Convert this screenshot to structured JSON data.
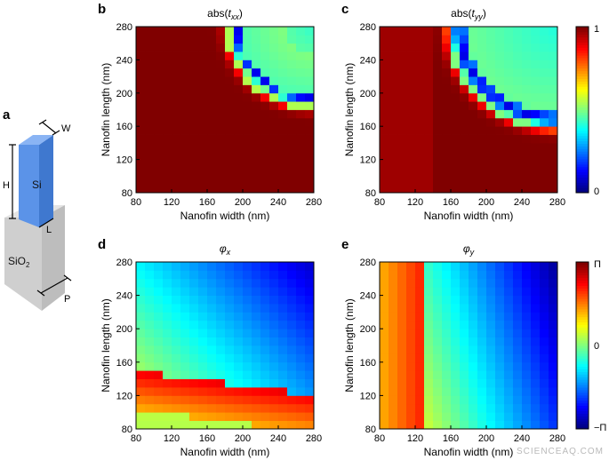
{
  "colors": {
    "si": "#5b93e8",
    "sio2_front": "#cfcfcf",
    "sio2_side": "#bdbdbd",
    "sio2_top": "#e4e4e4"
  },
  "schematic": {
    "letter": "a",
    "si_label": "Si",
    "sio2_label": "SiO",
    "sio2_sub": "2",
    "dims": {
      "w": "W",
      "h": "H",
      "l": "L",
      "p": "P"
    }
  },
  "colorbars": [
    {
      "max": "1",
      "min": "0",
      "colormap": "jet"
    },
    {
      "max": "Π",
      "mid": "0",
      "min": "−Π",
      "colormap": "jet"
    }
  ],
  "watermark": "SCIENCEAQ.COM",
  "chart_data": [
    {
      "letter": "b",
      "type": "heatmap",
      "title_prefix": "abs(",
      "title_var": "t",
      "title_sub": "xx",
      "title_suffix": ")",
      "xlabel": "Nanofin width (nm)",
      "ylabel": "Nanofin length (nm)",
      "xlim": [
        80,
        280
      ],
      "ylim": [
        80,
        280
      ],
      "xticks": [
        80,
        120,
        160,
        200,
        240,
        280
      ],
      "yticks": [
        80,
        120,
        160,
        200,
        240,
        280
      ],
      "grid": [
        20,
        20
      ],
      "value_range": [
        0,
        1
      ],
      "description": "transmission amplitude, mostly near 1 with a resonance band of low values along the upper-right diagonal"
    },
    {
      "letter": "c",
      "type": "heatmap",
      "title_prefix": "abs(",
      "title_var": "t",
      "title_sub": "yy",
      "title_suffix": ")",
      "xlabel": "Nanofin width (nm)",
      "ylabel": "Nanofin length (nm)",
      "xlim": [
        80,
        280
      ],
      "ylim": [
        80,
        280
      ],
      "xticks": [
        80,
        120,
        160,
        200,
        240,
        280
      ],
      "yticks": [
        80,
        120,
        160,
        200,
        240,
        280
      ],
      "grid": [
        20,
        20
      ],
      "value_range": [
        0,
        1
      ]
    },
    {
      "letter": "d",
      "type": "heatmap",
      "title_var": "φ",
      "title_sub": "x",
      "xlabel": "Nanofin width (nm)",
      "ylabel": "Nanofin length (nm)",
      "xlim": [
        80,
        280
      ],
      "ylim": [
        80,
        280
      ],
      "xticks": [
        80,
        120,
        160,
        200,
        240,
        280
      ],
      "yticks": [
        80,
        120,
        160,
        200,
        240,
        280
      ],
      "grid": [
        20,
        20
      ],
      "value_range": [
        -3.1416,
        3.1416
      ]
    },
    {
      "letter": "e",
      "type": "heatmap",
      "title_var": "φ",
      "title_sub": "y",
      "xlabel": "Nanofin width (nm)",
      "ylabel": "Nanofin length (nm)",
      "xlim": [
        80,
        280
      ],
      "ylim": [
        80,
        280
      ],
      "xticks": [
        80,
        120,
        160,
        200,
        240,
        280
      ],
      "yticks": [
        80,
        120,
        160,
        200,
        240,
        280
      ],
      "grid": [
        20,
        20
      ],
      "value_range": [
        -3.1416,
        3.1416
      ]
    }
  ]
}
